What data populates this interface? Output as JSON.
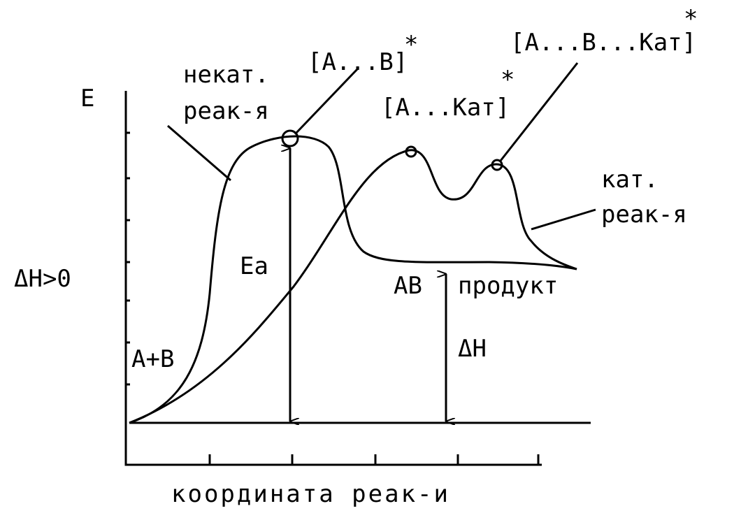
{
  "axes": {
    "y_label": "E",
    "x_label": "координата реак-и"
  },
  "labels": {
    "uncat_line1": "некат.",
    "uncat_line2": "реак-я",
    "ts_uncat": "[A...B]",
    "ts_uncat_star": "*",
    "ts_cat1": "[A...Кат]",
    "ts_cat1_star": "*",
    "ts_cat2": "[A...B...Кат]",
    "ts_cat2_star": "*",
    "cat_line1": "кат.",
    "cat_line2": "реак-я",
    "dh_condition": "ΔH>0",
    "ea": "Ea",
    "product_formula": "AB",
    "product": "продукт",
    "reactants": "A+B",
    "dh": "ΔH"
  }
}
